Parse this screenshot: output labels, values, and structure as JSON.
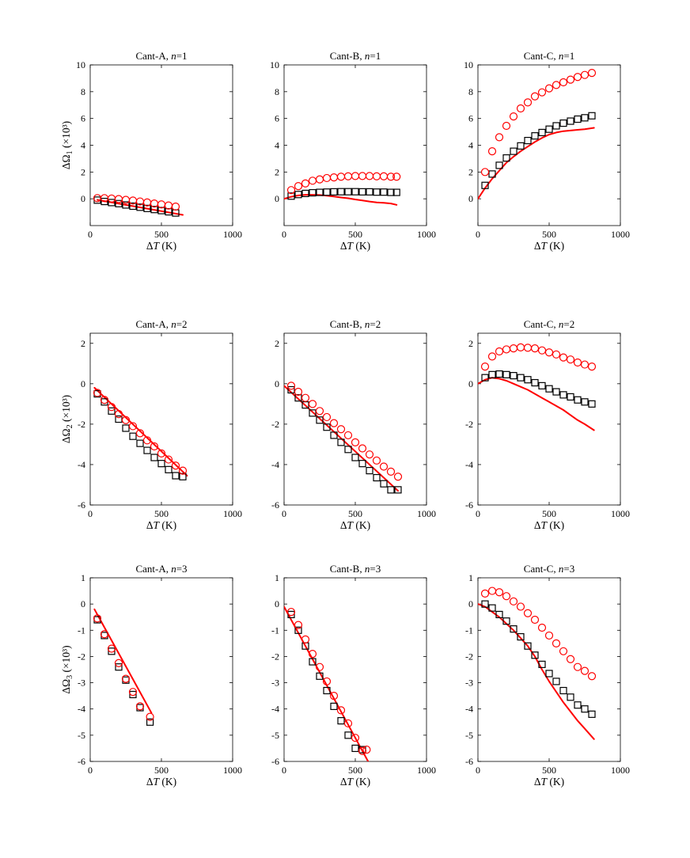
{
  "colors": {
    "model": "#ff0000",
    "circles": "#ff0000",
    "squares": "#000000",
    "axes": "#000000"
  },
  "chart_data": [
    {
      "type": "scatter",
      "title": "Cant-A, n=1",
      "title_prefix": "Cant-A, ",
      "title_var": "n",
      "title_suffix": "=1",
      "xlabel": "ΔT (K)",
      "ylabel": "ΔΩ1 (×10³)",
      "ylabel_sub": "1",
      "xlim": [
        0,
        1000
      ],
      "ylim": [
        -2,
        10
      ],
      "xticks": [
        0,
        500,
        1000
      ],
      "yticks": [
        0,
        2,
        4,
        6,
        8,
        10
      ],
      "series": [
        {
          "name": "line",
          "x": [
            50,
            650
          ],
          "y": [
            -0.08,
            -1.2
          ]
        },
        {
          "name": "circles",
          "x": [
            50,
            100,
            150,
            200,
            250,
            300,
            350,
            400,
            450,
            500,
            550,
            600
          ],
          "y": [
            0.05,
            0.05,
            0.02,
            -0.02,
            -0.08,
            -0.13,
            -0.2,
            -0.27,
            -0.35,
            -0.42,
            -0.5,
            -0.58
          ]
        },
        {
          "name": "squares",
          "x": [
            50,
            100,
            150,
            200,
            250,
            300,
            350,
            400,
            450,
            500,
            550,
            600
          ],
          "y": [
            -0.1,
            -0.2,
            -0.28,
            -0.36,
            -0.46,
            -0.55,
            -0.63,
            -0.72,
            -0.8,
            -0.88,
            -0.97,
            -1.06
          ]
        }
      ]
    },
    {
      "type": "scatter",
      "title": "Cant-B, n=1",
      "title_prefix": "Cant-B, ",
      "title_var": "n",
      "title_suffix": "=1",
      "xlabel": "ΔT (K)",
      "ylabel": "",
      "ylabel_sub": "",
      "xlim": [
        0,
        1000
      ],
      "ylim": [
        -2,
        10
      ],
      "xticks": [
        0,
        500,
        1000
      ],
      "yticks": [
        0,
        2,
        4,
        6,
        8,
        10
      ],
      "series": [
        {
          "name": "line",
          "x": [
            0,
            50,
            100,
            150,
            200,
            250,
            300,
            350,
            400,
            450,
            500,
            550,
            600,
            650,
            700,
            750,
            790
          ],
          "y": [
            0,
            0.15,
            0.25,
            0.3,
            0.3,
            0.28,
            0.23,
            0.17,
            0.1,
            0.04,
            -0.05,
            -0.12,
            -0.2,
            -0.27,
            -0.3,
            -0.35,
            -0.45
          ]
        },
        {
          "name": "circles",
          "x": [
            50,
            100,
            150,
            200,
            250,
            300,
            350,
            400,
            450,
            500,
            550,
            600,
            650,
            700,
            750,
            790
          ],
          "y": [
            0.65,
            0.95,
            1.15,
            1.35,
            1.45,
            1.55,
            1.6,
            1.65,
            1.68,
            1.7,
            1.7,
            1.7,
            1.68,
            1.68,
            1.65,
            1.65
          ]
        },
        {
          "name": "squares",
          "x": [
            50,
            100,
            150,
            200,
            250,
            300,
            350,
            400,
            450,
            500,
            550,
            600,
            650,
            700,
            750,
            790
          ],
          "y": [
            0.2,
            0.32,
            0.4,
            0.45,
            0.48,
            0.5,
            0.52,
            0.53,
            0.53,
            0.53,
            0.52,
            0.52,
            0.5,
            0.5,
            0.48,
            0.48
          ]
        }
      ]
    },
    {
      "type": "scatter",
      "title": "Cant-C, n=1",
      "title_prefix": "Cant-C, ",
      "title_var": "n",
      "title_suffix": "=1",
      "xlabel": "ΔT (K)",
      "ylabel": "",
      "ylabel_sub": "",
      "xlim": [
        0,
        1000
      ],
      "ylim": [
        -2,
        10
      ],
      "xticks": [
        0,
        500,
        1000
      ],
      "yticks": [
        0,
        2,
        4,
        6,
        8,
        10
      ],
      "series": [
        {
          "name": "line",
          "x": [
            0,
            50,
            100,
            150,
            200,
            250,
            300,
            350,
            400,
            450,
            500,
            550,
            600,
            650,
            700,
            750,
            815
          ],
          "y": [
            0,
            0.8,
            1.5,
            2.1,
            2.7,
            3.15,
            3.55,
            3.9,
            4.25,
            4.55,
            4.8,
            4.95,
            5.05,
            5.1,
            5.15,
            5.2,
            5.3
          ]
        },
        {
          "name": "circles",
          "x": [
            50,
            100,
            150,
            200,
            250,
            300,
            350,
            400,
            450,
            500,
            550,
            600,
            650,
            700,
            750,
            800
          ],
          "y": [
            2.0,
            3.55,
            4.6,
            5.45,
            6.15,
            6.75,
            7.2,
            7.65,
            7.95,
            8.25,
            8.5,
            8.7,
            8.9,
            9.1,
            9.25,
            9.4
          ]
        },
        {
          "name": "squares",
          "x": [
            50,
            100,
            150,
            200,
            250,
            300,
            350,
            400,
            450,
            500,
            550,
            600,
            650,
            700,
            750,
            800
          ],
          "y": [
            1.0,
            1.85,
            2.5,
            3.05,
            3.55,
            3.95,
            4.35,
            4.7,
            4.95,
            5.2,
            5.45,
            5.65,
            5.8,
            5.95,
            6.05,
            6.2
          ]
        }
      ]
    },
    {
      "type": "scatter",
      "title": "Cant-A, n=2",
      "title_prefix": "Cant-A, ",
      "title_var": "n",
      "title_suffix": "=2",
      "xlabel": "ΔT (K)",
      "ylabel": "ΔΩ2 (×10³)",
      "ylabel_sub": "2",
      "xlim": [
        0,
        1000
      ],
      "ylim": [
        -6,
        2.5
      ],
      "xticks": [
        0,
        500,
        1000
      ],
      "yticks": [
        -6,
        -4,
        -2,
        0,
        2
      ],
      "series": [
        {
          "name": "line",
          "x": [
            30,
            680
          ],
          "y": [
            -0.2,
            -4.55
          ]
        },
        {
          "name": "circles",
          "x": [
            50,
            100,
            150,
            200,
            250,
            300,
            350,
            400,
            450,
            500,
            550,
            600,
            650
          ],
          "y": [
            -0.45,
            -0.8,
            -1.15,
            -1.5,
            -1.8,
            -2.1,
            -2.45,
            -2.8,
            -3.1,
            -3.45,
            -3.75,
            -4.05,
            -4.3
          ]
        },
        {
          "name": "squares",
          "x": [
            50,
            100,
            150,
            200,
            250,
            300,
            350,
            400,
            450,
            500,
            550,
            600,
            650
          ],
          "y": [
            -0.5,
            -0.9,
            -1.35,
            -1.75,
            -2.2,
            -2.6,
            -2.95,
            -3.3,
            -3.65,
            -3.95,
            -4.25,
            -4.55,
            -4.6
          ]
        }
      ]
    },
    {
      "type": "scatter",
      "title": "Cant-B, n=2",
      "title_prefix": "Cant-B, ",
      "title_var": "n",
      "title_suffix": "=2",
      "xlabel": "ΔT (K)",
      "ylabel": "",
      "ylabel_sub": "",
      "xlim": [
        0,
        1000
      ],
      "ylim": [
        -6,
        2.5
      ],
      "xticks": [
        0,
        500,
        1000
      ],
      "yticks": [
        -6,
        -4,
        -2,
        0,
        2
      ],
      "series": [
        {
          "name": "line",
          "x": [
            0,
            800
          ],
          "y": [
            -0.1,
            -5.3
          ]
        },
        {
          "name": "circles",
          "x": [
            50,
            100,
            150,
            200,
            250,
            300,
            350,
            400,
            450,
            500,
            550,
            600,
            650,
            700,
            750,
            800
          ],
          "y": [
            -0.1,
            -0.4,
            -0.7,
            -1.0,
            -1.35,
            -1.65,
            -1.95,
            -2.25,
            -2.55,
            -2.9,
            -3.2,
            -3.5,
            -3.8,
            -4.1,
            -4.35,
            -4.6
          ]
        },
        {
          "name": "squares",
          "x": [
            50,
            100,
            150,
            200,
            250,
            300,
            350,
            400,
            450,
            500,
            550,
            600,
            650,
            700,
            750,
            800
          ],
          "y": [
            -0.3,
            -0.7,
            -1.05,
            -1.45,
            -1.8,
            -2.15,
            -2.55,
            -2.9,
            -3.25,
            -3.65,
            -3.95,
            -4.3,
            -4.65,
            -4.95,
            -5.25,
            -5.25
          ]
        }
      ]
    },
    {
      "type": "scatter",
      "title": "Cant-C, n=2",
      "title_prefix": "Cant-C, ",
      "title_var": "n",
      "title_suffix": "=2",
      "xlabel": "ΔT (K)",
      "ylabel": "",
      "ylabel_sub": "",
      "xlim": [
        0,
        1000
      ],
      "ylim": [
        -6,
        2.5
      ],
      "xticks": [
        0,
        500,
        1000
      ],
      "yticks": [
        -6,
        -4,
        -2,
        0,
        2
      ],
      "series": [
        {
          "name": "line",
          "x": [
            0,
            50,
            100,
            150,
            200,
            250,
            300,
            350,
            400,
            450,
            500,
            550,
            600,
            650,
            700,
            750,
            815
          ],
          "y": [
            0,
            0.2,
            0.3,
            0.25,
            0.15,
            0.0,
            -0.15,
            -0.3,
            -0.5,
            -0.7,
            -0.9,
            -1.1,
            -1.3,
            -1.55,
            -1.8,
            -2.0,
            -2.3
          ]
        },
        {
          "name": "circles",
          "x": [
            50,
            100,
            150,
            200,
            250,
            300,
            350,
            400,
            450,
            500,
            550,
            600,
            650,
            700,
            750,
            800
          ],
          "y": [
            0.85,
            1.35,
            1.6,
            1.7,
            1.75,
            1.8,
            1.78,
            1.75,
            1.65,
            1.55,
            1.45,
            1.3,
            1.2,
            1.05,
            0.95,
            0.85
          ]
        },
        {
          "name": "squares",
          "x": [
            50,
            100,
            150,
            200,
            250,
            300,
            350,
            400,
            450,
            500,
            550,
            600,
            650,
            700,
            750,
            800
          ],
          "y": [
            0.3,
            0.45,
            0.48,
            0.45,
            0.4,
            0.3,
            0.2,
            0.05,
            -0.1,
            -0.25,
            -0.4,
            -0.55,
            -0.65,
            -0.8,
            -0.9,
            -1.0
          ]
        }
      ]
    },
    {
      "type": "scatter",
      "title": "Cant-A, n=3",
      "title_prefix": "Cant-A, ",
      "title_var": "n",
      "title_suffix": "=3",
      "xlabel": "ΔT (K)",
      "ylabel": "ΔΩ3 (×10³)",
      "ylabel_sub": "3",
      "xlim": [
        0,
        1000
      ],
      "ylim": [
        -6,
        1
      ],
      "xticks": [
        0,
        500,
        1000
      ],
      "yticks": [
        -6,
        -5,
        -4,
        -3,
        -2,
        -1,
        0,
        1
      ],
      "series": [
        {
          "name": "line",
          "x": [
            30,
            430
          ],
          "y": [
            -0.2,
            -4.15
          ]
        },
        {
          "name": "circles",
          "x": [
            50,
            100,
            150,
            200,
            250,
            300,
            350,
            420
          ],
          "y": [
            -0.55,
            -1.15,
            -1.7,
            -2.25,
            -2.85,
            -3.35,
            -3.9,
            -4.3
          ]
        },
        {
          "name": "squares",
          "x": [
            50,
            100,
            150,
            200,
            250,
            300,
            350,
            420
          ],
          "y": [
            -0.6,
            -1.2,
            -1.8,
            -2.4,
            -2.9,
            -3.45,
            -3.95,
            -4.5
          ]
        }
      ]
    },
    {
      "type": "scatter",
      "title": "Cant-B, n=3",
      "title_prefix": "Cant-B, ",
      "title_var": "n",
      "title_suffix": "=3",
      "xlabel": "ΔT (K)",
      "ylabel": "",
      "ylabel_sub": "",
      "xlim": [
        0,
        1000
      ],
      "ylim": [
        -6,
        1
      ],
      "xticks": [
        0,
        500,
        1000
      ],
      "yticks": [
        -6,
        -5,
        -4,
        -3,
        -2,
        -1,
        0,
        1
      ],
      "series": [
        {
          "name": "line",
          "x": [
            0,
            590
          ],
          "y": [
            -0.1,
            -6.0
          ]
        },
        {
          "name": "circles",
          "x": [
            50,
            100,
            150,
            200,
            250,
            300,
            350,
            400,
            450,
            500,
            550,
            580
          ],
          "y": [
            -0.3,
            -0.8,
            -1.35,
            -1.9,
            -2.4,
            -2.95,
            -3.5,
            -4.05,
            -4.55,
            -5.1,
            -5.6,
            -5.55
          ]
        },
        {
          "name": "squares",
          "x": [
            50,
            100,
            150,
            200,
            250,
            300,
            350,
            400,
            450,
            500,
            550
          ],
          "y": [
            -0.4,
            -1.0,
            -1.6,
            -2.2,
            -2.75,
            -3.3,
            -3.9,
            -4.45,
            -5.0,
            -5.5,
            -5.55
          ]
        }
      ]
    },
    {
      "type": "scatter",
      "title": "Cant-C, n=3",
      "title_prefix": "Cant-C, ",
      "title_var": "n",
      "title_suffix": "=3",
      "xlabel": "ΔT (K)",
      "ylabel": "",
      "ylabel_sub": "",
      "xlim": [
        0,
        1000
      ],
      "ylim": [
        -6,
        1
      ],
      "xticks": [
        0,
        500,
        1000
      ],
      "yticks": [
        -6,
        -5,
        -4,
        -3,
        -2,
        -1,
        0,
        1
      ],
      "series": [
        {
          "name": "line",
          "x": [
            0,
            50,
            100,
            150,
            200,
            250,
            300,
            350,
            400,
            450,
            500,
            550,
            600,
            650,
            700,
            750,
            815
          ],
          "y": [
            0,
            -0.1,
            -0.3,
            -0.5,
            -0.75,
            -1.0,
            -1.3,
            -1.6,
            -2.0,
            -2.5,
            -2.95,
            -3.35,
            -3.75,
            -4.1,
            -4.45,
            -4.75,
            -5.15
          ]
        },
        {
          "name": "circles",
          "x": [
            50,
            100,
            150,
            200,
            250,
            300,
            350,
            400,
            450,
            500,
            550,
            600,
            650,
            700,
            750,
            800
          ],
          "y": [
            0.4,
            0.5,
            0.45,
            0.3,
            0.1,
            -0.1,
            -0.35,
            -0.6,
            -0.9,
            -1.2,
            -1.5,
            -1.8,
            -2.1,
            -2.4,
            -2.55,
            -2.75
          ]
        },
        {
          "name": "squares",
          "x": [
            50,
            100,
            150,
            200,
            250,
            300,
            350,
            400,
            450,
            500,
            550,
            600,
            650,
            700,
            750,
            800
          ],
          "y": [
            0.0,
            -0.15,
            -0.4,
            -0.65,
            -0.95,
            -1.25,
            -1.6,
            -1.95,
            -2.3,
            -2.65,
            -2.95,
            -3.3,
            -3.55,
            -3.85,
            -4.0,
            -4.2
          ]
        }
      ]
    }
  ]
}
